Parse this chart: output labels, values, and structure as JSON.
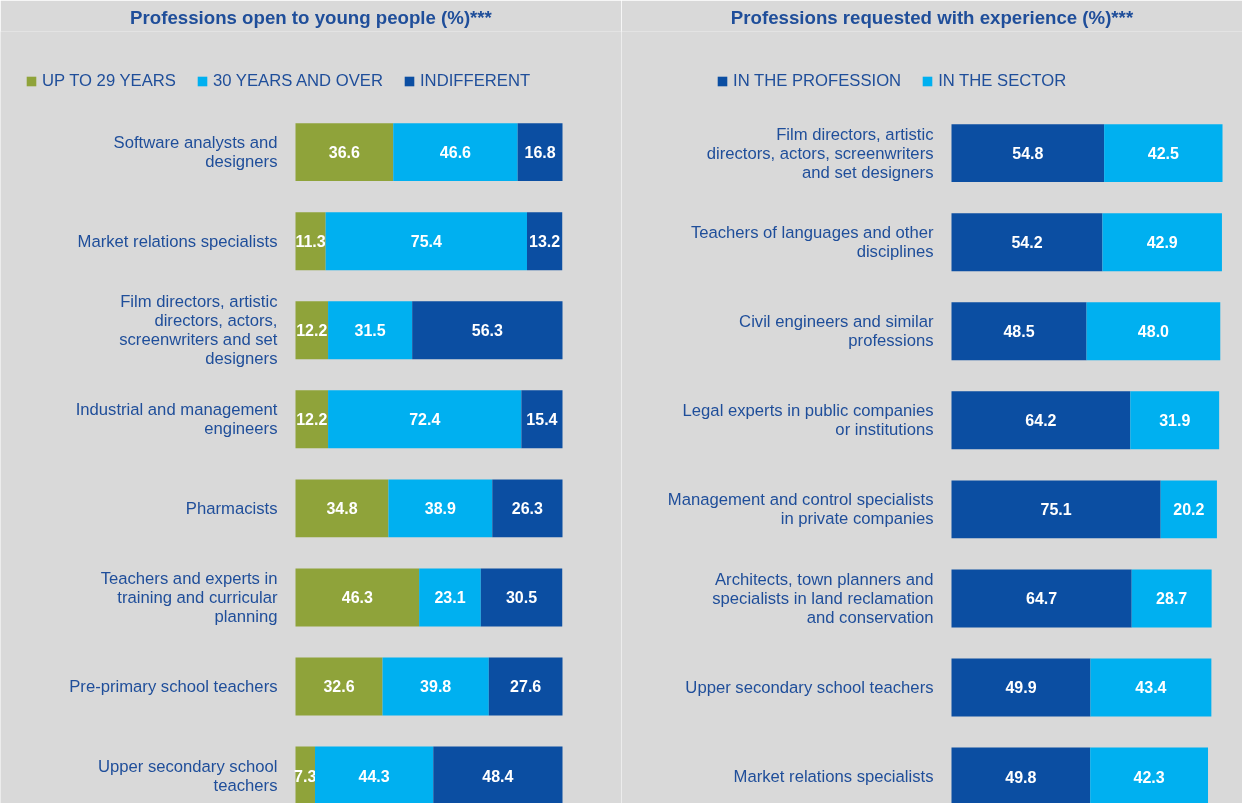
{
  "chart_data": [
    {
      "type": "bar",
      "orientation": "horizontal",
      "stacked": true,
      "title": "Professions open to young people (%)***",
      "categories": [
        "Software analysts and designers",
        "Market relations specialists",
        "Film directors, artistic directors, actors, screenwriters and set designers",
        "Industrial and management engineers",
        "Pharmacists",
        "Teachers and experts in training and curricular planning",
        "Pre-primary school teachers",
        "Upper secondary school teachers"
      ],
      "series": [
        {
          "name": "UP TO 29 YEARS",
          "color": "#8fa33a",
          "values": [
            36.6,
            11.3,
            12.2,
            12.2,
            34.8,
            46.3,
            32.6,
            7.3
          ]
        },
        {
          "name": "30 YEARS AND OVER",
          "color": "#00b0f0",
          "values": [
            46.6,
            75.4,
            31.5,
            72.4,
            38.9,
            23.1,
            39.8,
            44.3
          ]
        },
        {
          "name": "INDIFFERENT",
          "color": "#0b4ea2",
          "values": [
            16.8,
            13.2,
            56.3,
            15.4,
            26.3,
            30.5,
            27.6,
            48.4
          ]
        }
      ],
      "data_labels": true,
      "legend": "top",
      "tick_labels": "y",
      "grid": false
    },
    {
      "type": "bar",
      "orientation": "horizontal",
      "stacked": true,
      "title": "Professions requested with experience (%)***",
      "categories": [
        "Film directors, artistic directors, actors, screenwriters and set designers",
        "Teachers of languages and other disciplines",
        "Civil engineers and similar professions",
        "Legal experts in public companies or institutions",
        "Management and control specialists in private companies",
        "Architects, town planners and specialists in land reclamation and conservation",
        "Upper secondary school teachers",
        "Market relations specialists"
      ],
      "series": [
        {
          "name": "IN THE PROFESSION",
          "color": "#0b4ea2",
          "values": [
            54.8,
            54.2,
            48.5,
            64.2,
            75.1,
            64.7,
            49.9,
            49.8
          ],
          "value_labels": [
            "54.8",
            "54.2",
            "48.5",
            "64.2",
            "75.1",
            "64.7",
            "49.9",
            "49.8"
          ]
        },
        {
          "name": "IN THE SECTOR",
          "color": "#00b0f0",
          "values": [
            42.5,
            42.9,
            48.0,
            31.9,
            20.2,
            28.7,
            43.4,
            42.3
          ],
          "value_labels": [
            "42.5",
            "42.9",
            "48.0",
            "31.9",
            "20.2",
            "28.7",
            "43.4",
            "42.3"
          ]
        }
      ],
      "legend": "top",
      "tick_labels": "y",
      "grid": false
    }
  ]
}
